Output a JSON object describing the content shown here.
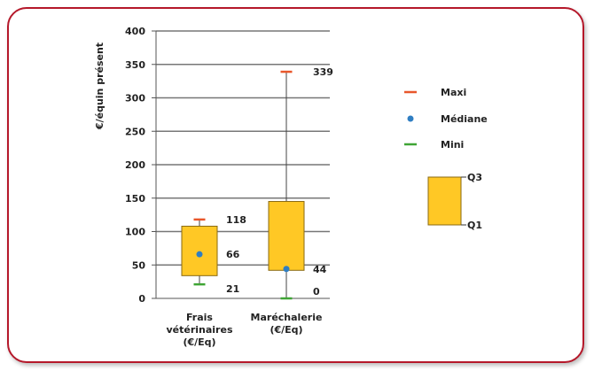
{
  "chart_data": {
    "type": "boxplot",
    "ylabel": "€/équin présent",
    "ylim": [
      0,
      400
    ],
    "yticks": [
      0,
      50,
      100,
      150,
      200,
      250,
      300,
      350,
      400
    ],
    "categories": [
      {
        "label_lines": [
          "Frais",
          "vétérinaires",
          "(€/Eq)"
        ],
        "max": 118,
        "q3": 108,
        "median": 66,
        "q1": 34,
        "min": 21
      },
      {
        "label_lines": [
          "Maréchalerie",
          "(€/Eq)"
        ],
        "max": 339,
        "q3": 145,
        "median": 44,
        "q1": 42,
        "min": 0
      }
    ],
    "legend": {
      "max_label": "Maxi",
      "median_label": "Médiane",
      "min_label": "Mini",
      "q3_label": "Q3",
      "q1_label": "Q1"
    },
    "colors": {
      "box": "#ffc825",
      "box_border": "#8a6a12",
      "max": "#e8572b",
      "median": "#2f7ec2",
      "min": "#3fa535",
      "grid": "#777777",
      "frame": "#b5182a"
    }
  }
}
